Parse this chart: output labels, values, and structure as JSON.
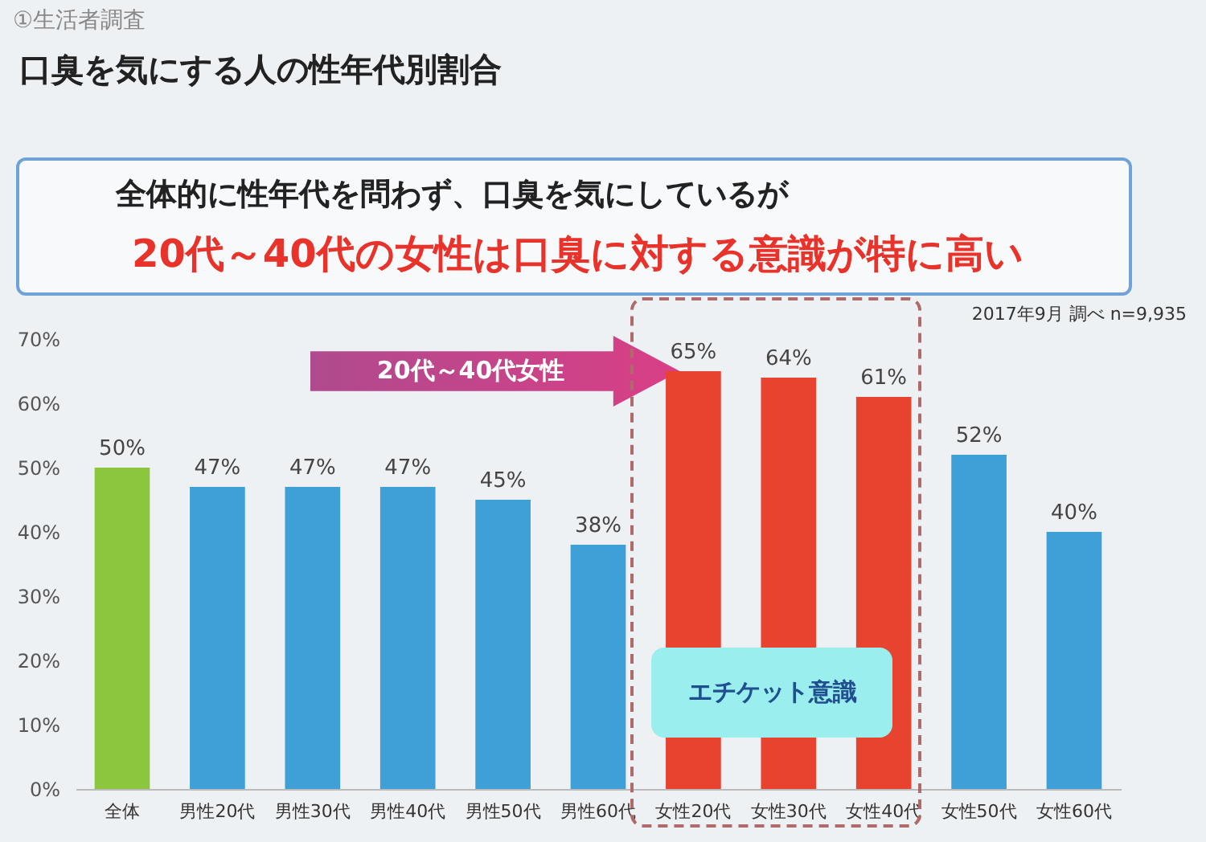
{
  "chart_data": {
    "type": "bar",
    "title": "口臭を気にする人の性年代別割合",
    "categories": [
      "全体",
      "男性20代",
      "男性30代",
      "男性40代",
      "男性50代",
      "男性60代",
      "女性20代",
      "女性30代",
      "女性40代",
      "女性50代",
      "女性60代"
    ],
    "values": [
      50,
      47,
      47,
      47,
      45,
      38,
      65,
      64,
      61,
      52,
      40
    ],
    "colors": [
      "#8cc63f",
      "#3fa0d8",
      "#3fa0d8",
      "#3fa0d8",
      "#3fa0d8",
      "#3fa0d8",
      "#e8432f",
      "#e8432f",
      "#e8432f",
      "#3fa0d8",
      "#3fa0d8"
    ],
    "value_labels": [
      "50%",
      "47%",
      "47%",
      "47%",
      "45%",
      "38%",
      "65%",
      "64%",
      "61%",
      "52%",
      "40%"
    ],
    "ylim": [
      0,
      70
    ],
    "yticks": [
      {
        "value": 0,
        "label": "0%"
      },
      {
        "value": 10,
        "label": "10%"
      },
      {
        "value": 20,
        "label": "20%"
      },
      {
        "value": 30,
        "label": "30%"
      },
      {
        "value": 40,
        "label": "40%"
      },
      {
        "value": 50,
        "label": "50%"
      },
      {
        "value": 60,
        "label": "60%"
      },
      {
        "value": 70,
        "label": "70%"
      }
    ],
    "annotations": [
      "①生活者調査",
      "全体的に性年代を問わず、口臭を気にしているが",
      "20代～40代の女性は口臭に対する意識が特に高い",
      "2017年9月 調べ n=9,935",
      "20代～40代女性",
      "エチケット意識"
    ]
  }
}
